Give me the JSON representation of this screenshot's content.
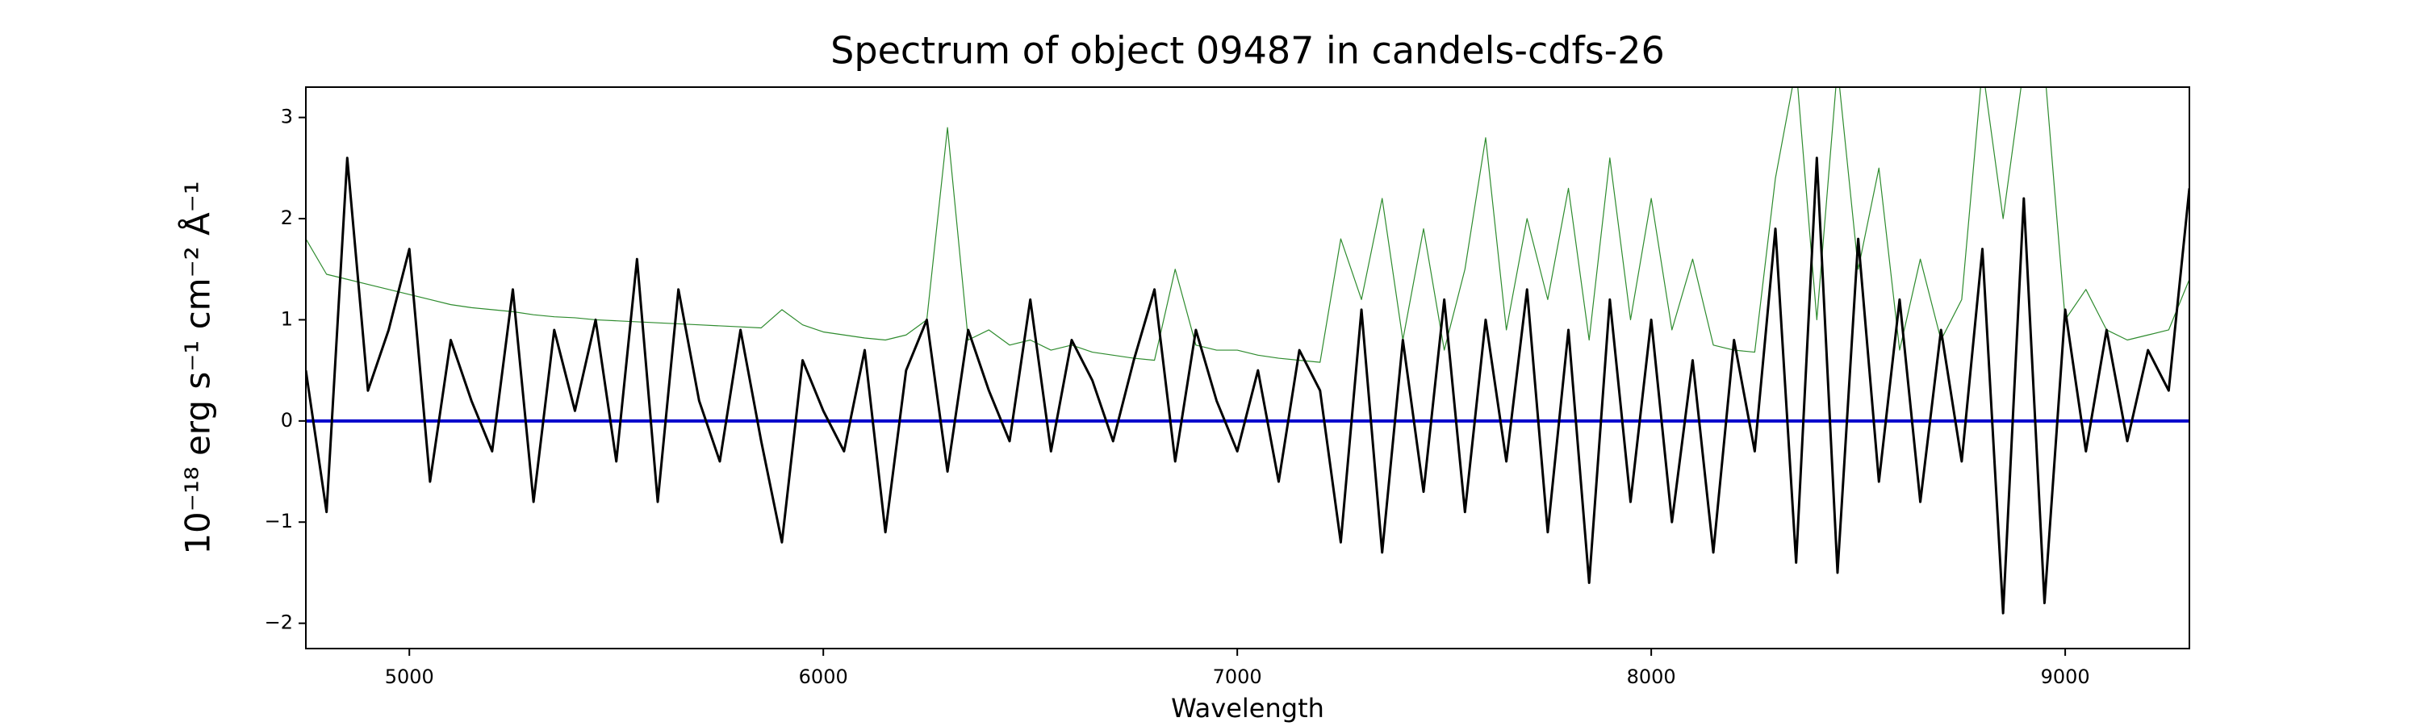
{
  "chart_data": {
    "type": "line",
    "title": "Spectrum of object 09487 in candels-cdfs-26",
    "xlabel": "Wavelength",
    "ylabel": "10⁻¹⁸ erg s⁻¹ cm⁻² Å⁻¹",
    "xlim": [
      4750,
      9300
    ],
    "ylim": [
      -2.25,
      3.3
    ],
    "xticks": [
      5000,
      6000,
      7000,
      8000,
      9000
    ],
    "yticks": [
      {
        "value": -2,
        "label": "−2"
      },
      {
        "value": -1,
        "label": "−1"
      },
      0,
      1,
      2,
      3
    ],
    "series": [
      {
        "color": "#2e8b2e",
        "width": 1.2,
        "x": [
          4750,
          4800,
          4850,
          4900,
          4950,
          5000,
          5050,
          5100,
          5150,
          5200,
          5250,
          5300,
          5350,
          5400,
          5450,
          5500,
          5550,
          5600,
          5650,
          5700,
          5750,
          5800,
          5850,
          5900,
          5950,
          6000,
          6050,
          6100,
          6150,
          6200,
          6250,
          6300,
          6350,
          6400,
          6450,
          6500,
          6550,
          6600,
          6650,
          6700,
          6750,
          6800,
          6850,
          6900,
          6950,
          7000,
          7050,
          7100,
          7150,
          7200,
          7250,
          7300,
          7350,
          7400,
          7450,
          7500,
          7550,
          7600,
          7650,
          7700,
          7750,
          7800,
          7850,
          7900,
          7950,
          8000,
          8050,
          8100,
          8150,
          8200,
          8250,
          8300,
          8350,
          8400,
          8450,
          8500,
          8550,
          8600,
          8650,
          8700,
          8750,
          8800,
          8850,
          8900,
          8950,
          9000,
          9050,
          9100,
          9150,
          9200,
          9250,
          9300
        ],
        "values": [
          1.8,
          1.45,
          1.4,
          1.35,
          1.3,
          1.25,
          1.2,
          1.15,
          1.12,
          1.1,
          1.08,
          1.05,
          1.03,
          1.02,
          1.0,
          0.99,
          0.98,
          0.97,
          0.96,
          0.95,
          0.94,
          0.93,
          0.92,
          1.1,
          0.95,
          0.88,
          0.85,
          0.82,
          0.8,
          0.85,
          1.0,
          2.9,
          0.8,
          0.9,
          0.75,
          0.8,
          0.7,
          0.75,
          0.68,
          0.65,
          0.62,
          0.6,
          1.5,
          0.75,
          0.7,
          0.7,
          0.65,
          0.62,
          0.6,
          0.58,
          1.8,
          1.2,
          2.2,
          0.8,
          1.9,
          0.7,
          1.5,
          2.8,
          0.9,
          2.0,
          1.2,
          2.3,
          0.8,
          2.6,
          1.0,
          2.2,
          0.9,
          1.6,
          0.75,
          0.7,
          0.68,
          2.4,
          3.5,
          1.0,
          3.5,
          1.5,
          2.5,
          0.7,
          1.6,
          0.8,
          1.2,
          3.5,
          2.0,
          3.5,
          3.5,
          1.0,
          1.3,
          0.9,
          0.8,
          0.85,
          0.9,
          1.4
        ]
      },
      {
        "color": "#0000cc",
        "width": 4,
        "x": [
          4750,
          9300
        ],
        "values": [
          0,
          0
        ]
      },
      {
        "color": "#000000",
        "width": 3,
        "x": [
          4750,
          4800,
          4850,
          4900,
          4950,
          5000,
          5050,
          5100,
          5150,
          5200,
          5250,
          5300,
          5350,
          5400,
          5450,
          5500,
          5550,
          5600,
          5650,
          5700,
          5750,
          5800,
          5850,
          5900,
          5950,
          6000,
          6050,
          6100,
          6150,
          6200,
          6250,
          6300,
          6350,
          6400,
          6450,
          6500,
          6550,
          6600,
          6650,
          6700,
          6750,
          6800,
          6850,
          6900,
          6950,
          7000,
          7050,
          7100,
          7150,
          7200,
          7250,
          7300,
          7350,
          7400,
          7450,
          7500,
          7550,
          7600,
          7650,
          7700,
          7750,
          7800,
          7850,
          7900,
          7950,
          8000,
          8050,
          8100,
          8150,
          8200,
          8250,
          8300,
          8350,
          8400,
          8450,
          8500,
          8550,
          8600,
          8650,
          8700,
          8750,
          8800,
          8850,
          8900,
          8950,
          9000,
          9050,
          9100,
          9150,
          9200,
          9250,
          9300
        ],
        "values": [
          0.5,
          -0.9,
          2.6,
          0.3,
          0.9,
          1.7,
          -0.6,
          0.8,
          0.2,
          -0.3,
          1.3,
          -0.8,
          0.9,
          0.1,
          1.0,
          -0.4,
          1.6,
          -0.8,
          1.3,
          0.2,
          -0.4,
          0.9,
          -0.2,
          -1.2,
          0.6,
          0.1,
          -0.3,
          0.7,
          -1.1,
          0.5,
          1.0,
          -0.5,
          0.9,
          0.3,
          -0.2,
          1.2,
          -0.3,
          0.8,
          0.4,
          -0.2,
          0.6,
          1.3,
          -0.4,
          0.9,
          0.2,
          -0.3,
          0.5,
          -0.6,
          0.7,
          0.3,
          -1.2,
          1.1,
          -1.3,
          0.8,
          -0.7,
          1.2,
          -0.9,
          1.0,
          -0.4,
          1.3,
          -1.1,
          0.9,
          -1.6,
          1.2,
          -0.8,
          1.0,
          -1.0,
          0.6,
          -1.3,
          0.8,
          -0.3,
          1.9,
          -1.4,
          2.6,
          -1.5,
          1.8,
          -0.6,
          1.2,
          -0.8,
          0.9,
          -0.4,
          1.7,
          -1.9,
          2.2,
          -1.8,
          1.1,
          -0.3,
          0.9,
          -0.2,
          0.7,
          0.3,
          2.3
        ]
      }
    ]
  }
}
